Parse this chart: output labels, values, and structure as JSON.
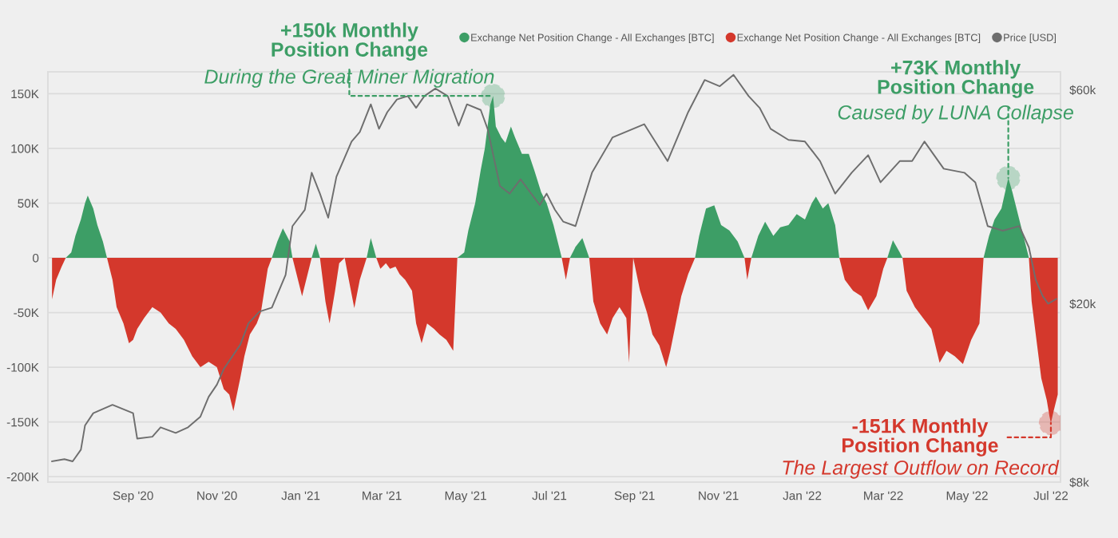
{
  "chart_data": {
    "type": "area",
    "log": "y2",
    "grid": "y",
    "legend": "top right",
    "x": [
      "2020-07-04",
      "2020-07-07",
      "2020-07-11",
      "2020-07-14",
      "2020-07-18",
      "2020-07-21",
      "2020-07-25",
      "2020-07-28",
      "2020-07-30",
      "2020-08-03",
      "2020-08-06",
      "2020-08-10",
      "2020-08-13",
      "2020-08-17",
      "2020-08-20",
      "2020-08-25",
      "2020-08-29",
      "2020-09-01",
      "2020-09-04",
      "2020-09-09",
      "2020-09-15",
      "2020-09-21",
      "2020-09-27",
      "2020-10-02",
      "2020-10-08",
      "2020-10-14",
      "2020-10-20",
      "2020-10-26",
      "2020-11-01",
      "2020-11-06",
      "2020-11-10",
      "2020-11-13",
      "2020-11-18",
      "2020-11-21",
      "2020-11-25",
      "2020-11-30",
      "2020-12-03",
      "2020-12-08",
      "2020-12-11",
      "2020-12-15",
      "2020-12-19",
      "2020-12-24",
      "2020-12-26",
      "2020-12-30",
      "2021-01-02",
      "2021-01-06",
      "2021-01-09",
      "2021-01-12",
      "2021-01-15",
      "2021-01-19",
      "2021-01-22",
      "2021-01-26",
      "2021-01-29",
      "2021-02-02",
      "2021-02-05",
      "2021-02-09",
      "2021-02-13",
      "2021-02-18",
      "2021-02-21",
      "2021-02-25",
      "2021-02-28",
      "2021-03-04",
      "2021-03-07",
      "2021-03-11",
      "2021-03-14",
      "2021-03-18",
      "2021-03-23",
      "2021-03-26",
      "2021-03-30",
      "2021-04-03",
      "2021-04-08",
      "2021-04-12",
      "2021-04-17",
      "2021-04-22",
      "2021-04-25",
      "2021-04-30",
      "2021-05-03",
      "2021-05-08",
      "2021-05-12",
      "2021-05-15",
      "2021-05-19",
      "2021-05-21",
      "2021-05-23",
      "2021-05-27",
      "2021-05-30",
      "2021-06-03",
      "2021-06-06",
      "2021-06-11",
      "2021-06-16",
      "2021-06-20",
      "2021-06-25",
      "2021-06-29",
      "2021-07-04",
      "2021-07-08",
      "2021-07-10",
      "2021-07-13",
      "2021-07-16",
      "2021-07-20",
      "2021-07-25",
      "2021-07-30",
      "2021-08-02",
      "2021-08-07",
      "2021-08-12",
      "2021-08-16",
      "2021-08-21",
      "2021-08-26",
      "2021-08-28",
      "2021-08-31",
      "2021-09-05",
      "2021-09-10",
      "2021-09-14",
      "2021-09-19",
      "2021-09-24",
      "2021-09-27",
      "2021-10-01",
      "2021-10-05",
      "2021-10-10",
      "2021-10-15",
      "2021-10-18",
      "2021-10-23",
      "2021-10-29",
      "2021-11-03",
      "2021-11-09",
      "2021-11-15",
      "2021-11-20",
      "2021-11-22",
      "2021-11-25",
      "2021-11-30",
      "2021-12-05",
      "2021-12-11",
      "2021-12-16",
      "2021-12-22",
      "2021-12-28",
      "2022-01-03",
      "2022-01-08",
      "2022-01-11",
      "2022-01-16",
      "2022-01-20",
      "2022-01-25",
      "2022-01-28",
      "2022-02-01",
      "2022-02-07",
      "2022-02-13",
      "2022-02-18",
      "2022-02-24",
      "2022-03-01",
      "2022-03-04",
      "2022-03-08",
      "2022-03-13",
      "2022-03-15",
      "2022-03-18",
      "2022-03-24",
      "2022-03-30",
      "2022-04-05",
      "2022-04-11",
      "2022-04-16",
      "2022-04-22",
      "2022-04-28",
      "2022-05-04",
      "2022-05-10",
      "2022-05-13",
      "2022-05-17",
      "2022-05-21",
      "2022-05-26",
      "2022-05-31",
      "2022-06-03",
      "2022-06-07",
      "2022-06-11",
      "2022-06-15",
      "2022-06-17",
      "2022-06-21",
      "2022-06-24",
      "2022-06-28",
      "2022-06-30",
      "2022-07-01",
      "2022-07-03",
      "2022-07-06"
    ],
    "series": [
      {
        "name": "Exchange Net Position Change - All Exchanges [BTC]",
        "color": "#3d9e66",
        "values": [
          null,
          null,
          null,
          0,
          5000,
          20000,
          35000,
          50000,
          57000,
          45000,
          30000,
          15000,
          0,
          null,
          null,
          null,
          null,
          null,
          null,
          null,
          null,
          null,
          null,
          null,
          null,
          null,
          null,
          null,
          null,
          null,
          null,
          null,
          null,
          null,
          null,
          null,
          null,
          null,
          0,
          15000,
          27000,
          15000,
          0,
          null,
          null,
          null,
          0,
          13000,
          0,
          null,
          null,
          null,
          null,
          null,
          null,
          null,
          null,
          0,
          18000,
          0,
          null,
          null,
          null,
          null,
          null,
          null,
          null,
          null,
          null,
          null,
          null,
          null,
          null,
          null,
          0,
          5000,
          25000,
          50000,
          80000,
          100000,
          140000,
          148000,
          120000,
          110000,
          105000,
          120000,
          110000,
          95000,
          95000,
          80000,
          60000,
          50000,
          30000,
          10000,
          0,
          null,
          0,
          10000,
          18000,
          0,
          null,
          null,
          null,
          null,
          null,
          null,
          null,
          null,
          null,
          null,
          null,
          null,
          null,
          null,
          null,
          null,
          null,
          0,
          20000,
          45000,
          48000,
          30000,
          25000,
          15000,
          0,
          null,
          0,
          20000,
          33000,
          20000,
          28000,
          30000,
          40000,
          35000,
          50000,
          56000,
          45000,
          50000,
          30000,
          0,
          null,
          null,
          null,
          null,
          null,
          null,
          0,
          16000,
          5000,
          0,
          null,
          null,
          null,
          null,
          null,
          null,
          null,
          null,
          null,
          null,
          0,
          20000,
          35000,
          45000,
          73000,
          60000,
          40000,
          20000,
          0,
          null,
          null,
          null,
          null,
          null,
          null,
          null,
          null
        ]
      },
      {
        "name": "Exchange Net Position Change - All Exchanges [BTC]",
        "color": "#d4382c",
        "values": [
          -38000,
          -20000,
          -8000,
          0,
          null,
          null,
          null,
          null,
          null,
          null,
          null,
          null,
          0,
          -20000,
          -45000,
          -60000,
          -78000,
          -75000,
          -65000,
          -55000,
          -45000,
          -50000,
          -60000,
          -65000,
          -75000,
          -90000,
          -100000,
          -95000,
          -100000,
          -120000,
          -125000,
          -140000,
          -110000,
          -90000,
          -70000,
          -60000,
          -50000,
          -10000,
          0,
          null,
          null,
          null,
          0,
          -20000,
          -35000,
          -15000,
          0,
          null,
          0,
          -40000,
          -60000,
          -30000,
          -5000,
          0,
          -20000,
          -46000,
          -20000,
          0,
          null,
          0,
          -10000,
          -5000,
          -10000,
          -8000,
          -15000,
          -20000,
          -30000,
          -60000,
          -78000,
          -60000,
          -65000,
          -70000,
          -75000,
          -85000,
          0,
          null,
          null,
          null,
          null,
          null,
          null,
          null,
          null,
          null,
          null,
          null,
          null,
          null,
          null,
          null,
          null,
          null,
          null,
          null,
          0,
          -20000,
          0,
          null,
          null,
          0,
          -40000,
          -60000,
          -70000,
          -55000,
          -45000,
          -55000,
          -96000,
          0,
          -30000,
          -50000,
          -70000,
          -80000,
          -100000,
          -85000,
          -60000,
          -35000,
          -15000,
          0,
          null,
          null,
          null,
          null,
          null,
          null,
          0,
          -20000,
          0,
          null,
          null,
          null,
          null,
          null,
          null,
          null,
          null,
          null,
          null,
          null,
          null,
          0,
          -20000,
          -30000,
          -35000,
          -48000,
          -35000,
          -10000,
          0,
          null,
          null,
          0,
          -30000,
          -45000,
          -55000,
          -65000,
          -96000,
          -85000,
          -90000,
          -97000,
          -75000,
          -60000,
          0,
          null,
          null,
          null,
          null,
          null,
          null,
          null,
          0,
          -40000,
          -80000,
          -110000,
          -130000,
          -145000,
          -151000,
          -140000,
          -125000
        ]
      },
      {
        "name": "Price [USD]",
        "color": "#6e6e6e",
        "type": "line",
        "axis": "y2",
        "x": [
          "2020-07-04",
          "2020-07-13",
          "2020-07-19",
          "2020-07-25",
          "2020-07-28",
          "2020-08-03",
          "2020-08-17",
          "2020-09-01",
          "2020-09-04",
          "2020-09-15",
          "2020-09-21",
          "2020-10-02",
          "2020-10-11",
          "2020-10-20",
          "2020-10-26",
          "2020-11-01",
          "2020-11-06",
          "2020-11-18",
          "2020-11-24",
          "2020-12-02",
          "2020-12-11",
          "2020-12-21",
          "2020-12-26",
          "2021-01-04",
          "2021-01-09",
          "2021-01-15",
          "2021-01-21",
          "2021-01-27",
          "2021-02-07",
          "2021-02-13",
          "2021-02-21",
          "2021-02-27",
          "2021-03-05",
          "2021-03-12",
          "2021-03-20",
          "2021-03-26",
          "2021-04-01",
          "2021-04-09",
          "2021-04-18",
          "2021-04-26",
          "2021-05-02",
          "2021-05-12",
          "2021-05-17",
          "2021-05-26",
          "2021-06-02",
          "2021-06-10",
          "2021-06-16",
          "2021-06-24",
          "2021-06-29",
          "2021-07-05",
          "2021-07-11",
          "2021-07-20",
          "2021-08-01",
          "2021-08-16",
          "2021-09-08",
          "2021-09-25",
          "2021-10-10",
          "2021-10-22",
          "2021-11-02",
          "2021-11-12",
          "2021-11-23",
          "2021-12-01",
          "2021-12-09",
          "2021-12-22",
          "2022-01-03",
          "2022-01-14",
          "2022-01-25",
          "2022-02-06",
          "2022-02-18",
          "2022-02-27",
          "2022-03-13",
          "2022-03-22",
          "2022-03-31",
          "2022-04-14",
          "2022-04-29",
          "2022-05-07",
          "2022-05-16",
          "2022-05-27",
          "2022-06-08",
          "2022-06-15",
          "2022-06-20",
          "2022-06-25",
          "2022-06-29",
          "2022-07-05"
        ],
        "values": [
          8900,
          9000,
          8900,
          9450,
          10700,
          11400,
          11900,
          11400,
          10000,
          10100,
          10600,
          10300,
          10600,
          11200,
          12400,
          13200,
          14300,
          16200,
          18100,
          19200,
          19600,
          23200,
          29800,
          32400,
          39200,
          35200,
          31100,
          38400,
          46000,
          48300,
          55700,
          49100,
          53500,
          57100,
          58100,
          54700,
          58100,
          60400,
          58100,
          49900,
          55700,
          54100,
          49100,
          36600,
          35200,
          37900,
          35800,
          33200,
          35200,
          32400,
          30500,
          29800,
          39200,
          47000,
          50300,
          41600,
          53500,
          63100,
          61100,
          64800,
          58100,
          54700,
          49100,
          46400,
          46000,
          41600,
          35200,
          39200,
          42900,
          37300,
          41600,
          41600,
          46000,
          40000,
          39200,
          37300,
          29800,
          29100,
          29800,
          26700,
          22600,
          20800,
          20000,
          20500
        ]
      }
    ],
    "xlim": [
      "2020-07-01",
      "2022-07-08"
    ],
    "xticks": [
      {
        "value": "2020-09-01",
        "label": "Sep '20"
      },
      {
        "value": "2020-11-01",
        "label": "Nov '20"
      },
      {
        "value": "2021-01-01",
        "label": "Jan '21"
      },
      {
        "value": "2021-03-01",
        "label": "Mar '21"
      },
      {
        "value": "2021-05-01",
        "label": "May '21"
      },
      {
        "value": "2021-07-01",
        "label": "Jul '21"
      },
      {
        "value": "2021-09-01",
        "label": "Sep '21"
      },
      {
        "value": "2021-11-01",
        "label": "Nov '21"
      },
      {
        "value": "2022-01-01",
        "label": "Jan '22"
      },
      {
        "value": "2022-03-01",
        "label": "Mar '22"
      },
      {
        "value": "2022-05-01",
        "label": "May '22"
      },
      {
        "value": "2022-07-01",
        "label": "Jul '22"
      }
    ],
    "ylim": [
      -205000,
      170000
    ],
    "yticks": [
      {
        "value": -200000,
        "label": "-200K"
      },
      {
        "value": -150000,
        "label": "-150K"
      },
      {
        "value": -100000,
        "label": "-100K"
      },
      {
        "value": -50000,
        "label": "-50K"
      },
      0,
      {
        "value": 50000,
        "label": "50K"
      },
      {
        "value": 100000,
        "label": "100K"
      },
      {
        "value": 150000,
        "label": "150K"
      }
    ],
    "y2lim": [
      8000,
      65800
    ],
    "y2ticks": [
      {
        "value": 8000,
        "label": "$8k"
      },
      {
        "value": 20000,
        "label": "$20k"
      },
      {
        "value": 60000,
        "label": "$60k"
      }
    ],
    "annotations": [
      {
        "text": "+150k Monthly\nPosition Change",
        "x": "2021-05-21",
        "y": 148000
      },
      "During the Great Miner Migration",
      {
        "text": "+73K Monthly\nPosition Change",
        "x": "2022-05-31",
        "y": 73000
      },
      "Caused by LUNA Collapse",
      {
        "text": "-151K Monthly\nPosition Change",
        "x": "2022-07-01",
        "y": -151000
      },
      "The Largest Outflow on Record"
    ]
  }
}
